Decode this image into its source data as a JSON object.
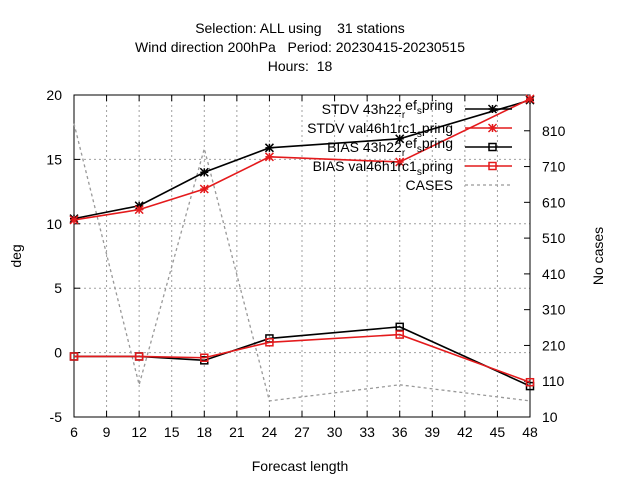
{
  "chart_data": {
    "type": "line",
    "title_lines": [
      "Selection: ALL using    31 stations",
      "Wind direction 200hPa   Period: 20230415-20230515",
      "Hours:  18"
    ],
    "xlabel": "Forecast length",
    "ylabel": "deg",
    "y2label": "No cases",
    "xlim": [
      6,
      48
    ],
    "ylim": [
      -5,
      20
    ],
    "y2lim": [
      10,
      910
    ],
    "x_ticks": [
      6,
      9,
      12,
      15,
      18,
      21,
      24,
      27,
      30,
      33,
      36,
      39,
      42,
      45,
      48
    ],
    "y_ticks": [
      -5,
      0,
      5,
      10,
      15,
      20
    ],
    "y2_ticks": [
      10,
      110,
      210,
      310,
      410,
      510,
      610,
      710,
      810
    ],
    "grid": true,
    "legend_position": "top-right",
    "series": [
      {
        "name": "STDV 43h22_ref_spring",
        "name_parts": [
          "STDV 43h22",
          "r",
          "ef",
          "s",
          "pring"
        ],
        "color": "#000000",
        "marker": "star",
        "axis": "y",
        "x": [
          6,
          12,
          18,
          24,
          36,
          48
        ],
        "values": [
          10.4,
          11.4,
          14.0,
          15.9,
          16.6,
          19.6
        ]
      },
      {
        "name": "STDV val46h1rc1_spring",
        "name_parts": [
          "STDV val46h1rc1",
          "",
          "",
          "s",
          "pring"
        ],
        "color": "#e41a1c",
        "marker": "star",
        "axis": "y",
        "x": [
          6,
          12,
          18,
          24,
          36,
          48
        ],
        "values": [
          10.3,
          11.1,
          12.7,
          15.2,
          14.8,
          19.7
        ]
      },
      {
        "name": "BIAS 43h22_ref_spring",
        "name_parts": [
          "BIAS 43h22",
          "r",
          "ef",
          "s",
          "pring"
        ],
        "color": "#000000",
        "marker": "square",
        "axis": "y",
        "x": [
          6,
          12,
          18,
          24,
          36,
          48
        ],
        "values": [
          -0.3,
          -0.3,
          -0.6,
          1.1,
          2.0,
          -2.6
        ]
      },
      {
        "name": "BIAS val46h1rc1_spring",
        "name_parts": [
          "BIAS val46h1rc1",
          "",
          "",
          "s",
          "pring"
        ],
        "color": "#e41a1c",
        "marker": "square",
        "axis": "y",
        "x": [
          6,
          12,
          18,
          24,
          36,
          48
        ],
        "values": [
          -0.3,
          -0.3,
          -0.4,
          0.8,
          1.4,
          -2.3
        ]
      },
      {
        "name": "CASES",
        "name_parts": [
          "CASES",
          "",
          "",
          "",
          ""
        ],
        "color": "#999999",
        "marker": "none",
        "dash": true,
        "axis": "y2",
        "x": [
          6,
          12,
          18,
          24,
          36,
          48
        ],
        "values": [
          830,
          100,
          760,
          55,
          100,
          55
        ]
      }
    ]
  }
}
